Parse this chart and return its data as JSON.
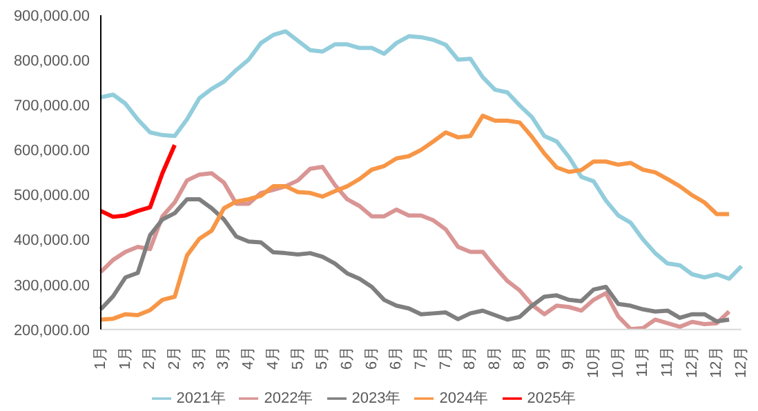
{
  "chart_data": {
    "type": "line",
    "categories": [
      "1月",
      null,
      "1月",
      null,
      "2月",
      null,
      "2月",
      null,
      "3月",
      null,
      "3月",
      null,
      "4月",
      null,
      "4月",
      null,
      "5月",
      null,
      "5月",
      null,
      "6月",
      null,
      "6月",
      null,
      "6月",
      null,
      "7月",
      null,
      "7月",
      null,
      "8月",
      null,
      "8月",
      null,
      "8月",
      null,
      "9月",
      null,
      "9月",
      null,
      "10月",
      null,
      "10月",
      null,
      "11月",
      null,
      "11月",
      null,
      "12月",
      null,
      "12月",
      null,
      "12月"
    ],
    "series": [
      {
        "name": "2021年",
        "color": "#92cddc",
        "values": [
          717000,
          723000,
          703000,
          668000,
          639000,
          633000,
          631000,
          668000,
          715000,
          736000,
          752000,
          778000,
          801000,
          838000,
          856000,
          864000,
          843000,
          822000,
          819000,
          835000,
          835000,
          827000,
          827000,
          814000,
          838000,
          853000,
          851000,
          845000,
          834000,
          801000,
          803000,
          762000,
          734000,
          728000,
          699000,
          673000,
          631000,
          619000,
          584000,
          540000,
          530000,
          487000,
          454000,
          438000,
          401000,
          370000,
          347000,
          343000,
          323000,
          316000,
          323000,
          313000,
          341000
        ]
      },
      {
        "name": "2022年",
        "color": "#d99594",
        "values": [
          328000,
          355000,
          373000,
          384000,
          379000,
          452000,
          483000,
          532000,
          545000,
          548000,
          527000,
          480000,
          480000,
          504000,
          511000,
          519000,
          532000,
          558000,
          562000,
          522000,
          490000,
          475000,
          452000,
          452000,
          467000,
          454000,
          454000,
          443000,
          423000,
          384000,
          373000,
          373000,
          339000,
          308000,
          287000,
          255000,
          234000,
          253000,
          250000,
          242000,
          266000,
          281000,
          229000,
          201000,
          203000,
          222000,
          214000,
          206000,
          217000,
          212000,
          214000,
          240000,
          null
        ]
      },
      {
        "name": "2023年",
        "color": "#7f7f7f",
        "values": [
          245000,
          274000,
          316000,
          326000,
          410000,
          445000,
          459000,
          490000,
          490000,
          470000,
          445000,
          407000,
          396000,
          394000,
          372000,
          370000,
          367000,
          370000,
          362000,
          347000,
          325000,
          313000,
          295000,
          266000,
          253000,
          247000,
          234000,
          236000,
          238000,
          223000,
          236000,
          242000,
          232000,
          222000,
          228000,
          253000,
          273000,
          276000,
          266000,
          263000,
          289000,
          295000,
          257000,
          253000,
          245000,
          240000,
          242000,
          226000,
          234000,
          234000,
          218000,
          222000,
          null
        ]
      },
      {
        "name": "2024年",
        "color": "#f79646",
        "values": [
          222000,
          224000,
          234000,
          232000,
          243000,
          266000,
          273000,
          365000,
          402000,
          420000,
          470000,
          485000,
          490000,
          498000,
          519000,
          519000,
          506000,
          504000,
          496000,
          508000,
          519000,
          535000,
          556000,
          564000,
          581000,
          586000,
          600000,
          619000,
          639000,
          628000,
          631000,
          676000,
          665000,
          665000,
          661000,
          629000,
          592000,
          561000,
          551000,
          555000,
          574000,
          574000,
          567000,
          571000,
          556000,
          550000,
          535000,
          519000,
          499000,
          483000,
          457000,
          457000,
          null
        ]
      },
      {
        "name": "2025年",
        "color": "#ff0000",
        "values": [
          464000,
          451000,
          454000,
          464000,
          472000,
          548000,
          611000,
          null,
          null,
          null,
          null,
          null,
          null,
          null,
          null,
          null,
          null,
          null,
          null,
          null,
          null,
          null,
          null,
          null,
          null,
          null,
          null,
          null,
          null,
          null,
          null,
          null,
          null,
          null,
          null,
          null,
          null,
          null,
          null,
          null,
          null,
          null,
          null,
          null,
          null,
          null,
          null,
          null,
          null,
          null,
          null,
          null,
          null
        ]
      }
    ],
    "ylim": [
      200000,
      900000
    ],
    "yticks": [
      {
        "value": 200000,
        "label": "200,000.00"
      },
      {
        "value": 300000,
        "label": "300,000.00"
      },
      {
        "value": 400000,
        "label": "400,000.00"
      },
      {
        "value": 500000,
        "label": "500,000.00"
      },
      {
        "value": 600000,
        "label": "600,000.00"
      },
      {
        "value": 700000,
        "label": "700,000.00"
      },
      {
        "value": 800000,
        "label": "800,000.00"
      },
      {
        "value": 900000,
        "label": "900,000.00"
      }
    ],
    "grid": false,
    "legend": "bottom",
    "marker": "none",
    "line_style": "solid"
  }
}
